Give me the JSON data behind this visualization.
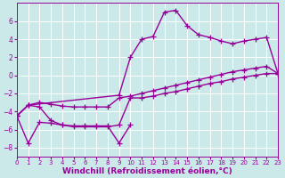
{
  "background_color": "#cbe9e9",
  "grid_color": "#ffffff",
  "line_color": "#990099",
  "marker": "+",
  "markersize": 4,
  "linewidth": 1.0,
  "xlabel": "Windchill (Refroidissement éolien,°C)",
  "xlabel_fontsize": 6.5,
  "xlabel_fontweight": "bold",
  "xtick_fontsize": 5.0,
  "ytick_fontsize": 5.5,
  "xlim": [
    0,
    23
  ],
  "ylim": [
    -9,
    8
  ],
  "xticks": [
    0,
    1,
    2,
    3,
    4,
    5,
    6,
    7,
    8,
    9,
    10,
    11,
    12,
    13,
    14,
    15,
    16,
    17,
    18,
    19,
    20,
    21,
    22,
    23
  ],
  "yticks": [
    -8,
    -6,
    -4,
    -2,
    0,
    2,
    4,
    6
  ],
  "line1_x": [
    0,
    1,
    9,
    10,
    11,
    12,
    13,
    14,
    15,
    16,
    17,
    18,
    19,
    20,
    21,
    22,
    23
  ],
  "line1_y": [
    -4.5,
    -3.3,
    -2.2,
    2.0,
    4.0,
    4.3,
    7.0,
    7.2,
    5.5,
    4.5,
    4.2,
    3.8,
    3.5,
    3.8,
    4.0,
    4.2,
    0.2
  ],
  "line2_x": [
    0,
    1,
    2,
    3,
    4,
    5,
    6,
    7,
    8,
    9,
    10
  ],
  "line2_y": [
    -4.5,
    -7.5,
    -5.2,
    -5.3,
    -5.5,
    -5.6,
    -5.6,
    -5.6,
    -5.6,
    -7.5,
    -5.5
  ],
  "line3_x": [
    0,
    1,
    2,
    3,
    4,
    5,
    6,
    7,
    8,
    9,
    10,
    11,
    12,
    13,
    14,
    15,
    16,
    17,
    18,
    19,
    20,
    21,
    22,
    23
  ],
  "line3_y": [
    -4.5,
    -3.3,
    -3.5,
    -5.0,
    -5.5,
    -5.7,
    -5.7,
    -5.7,
    -5.7,
    -5.5,
    -2.5,
    -2.5,
    -2.3,
    -2.0,
    -1.8,
    -1.5,
    -1.2,
    -0.9,
    -0.7,
    -0.4,
    -0.2,
    0.0,
    0.2,
    0.2
  ],
  "line4_x": [
    0,
    1,
    2,
    3,
    4,
    5,
    6,
    7,
    8,
    9,
    10,
    11,
    12,
    13,
    14,
    15,
    16,
    17,
    18,
    19,
    20,
    21,
    22,
    23
  ],
  "line4_y": [
    -4.5,
    -3.3,
    -3.0,
    -3.2,
    -3.4,
    -3.5,
    -3.5,
    -3.5,
    -3.5,
    -2.5,
    -2.3,
    -2.0,
    -1.7,
    -1.4,
    -1.1,
    -0.8,
    -0.5,
    -0.2,
    0.1,
    0.4,
    0.6,
    0.8,
    1.0,
    0.2
  ]
}
